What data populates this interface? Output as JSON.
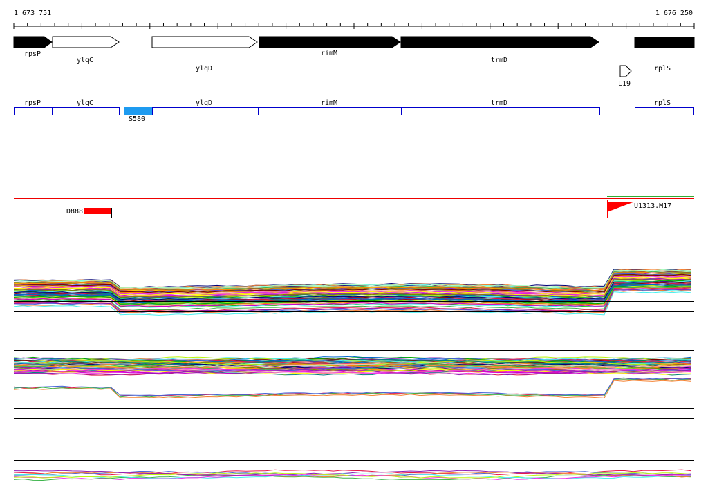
{
  "coordinates": {
    "start": "1 673 751",
    "end": "1 676 250"
  },
  "genes": [
    {
      "label": "rpsP"
    },
    {
      "label": "ylqC"
    },
    {
      "label": "ylqD"
    },
    {
      "label": "rimM"
    },
    {
      "label": "trmD"
    },
    {
      "label": "rplS"
    }
  ],
  "promoters": [
    {
      "label": "L19"
    }
  ],
  "regions": [
    {
      "label": "rpsP"
    },
    {
      "label": "ylqC"
    },
    {
      "label": "ylqD"
    },
    {
      "label": "rimM"
    },
    {
      "label": "trmD"
    },
    {
      "label": "rplS"
    }
  ],
  "segments": [
    {
      "label": "S580"
    }
  ],
  "features": [
    {
      "label": "D888"
    },
    {
      "label": "U1313.M17"
    }
  ]
}
